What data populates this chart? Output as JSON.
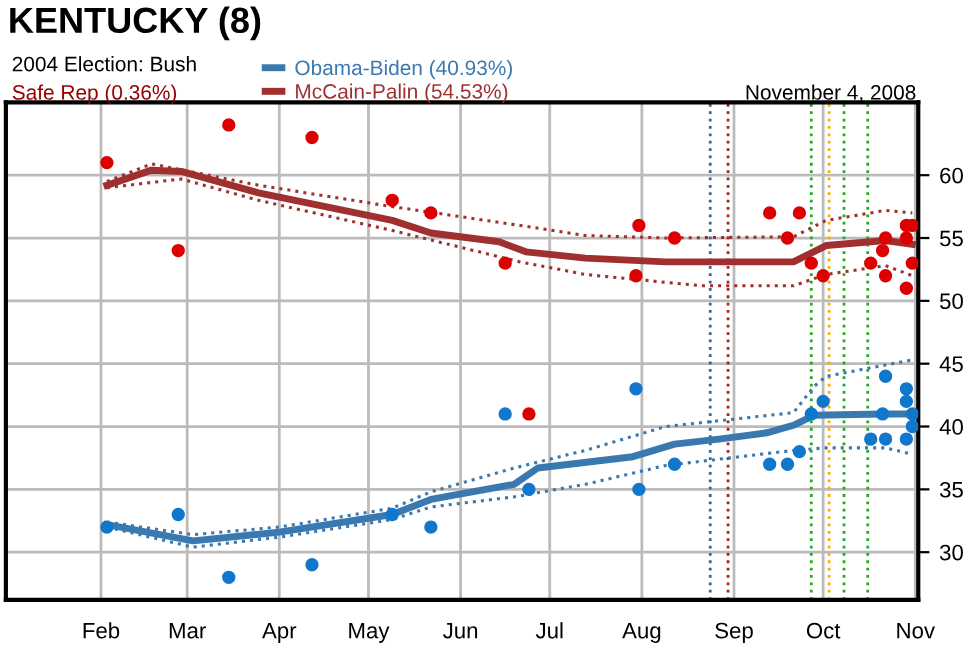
{
  "chart_data": {
    "type": "line",
    "title": "KENTUCKY (8)",
    "subtitle": "2004 Election: Bush",
    "annotations": [
      "Safe Rep (0.36%)",
      "November 4, 2008"
    ],
    "xlim": [
      "2007-12-31",
      "2008-11-02"
    ],
    "xticks": [
      {
        "value": "2008-02-01",
        "label": "Feb"
      },
      {
        "value": "2008-03-01",
        "label": "Mar"
      },
      {
        "value": "2008-04-01",
        "label": "Apr"
      },
      {
        "value": "2008-05-01",
        "label": "May"
      },
      {
        "value": "2008-06-01",
        "label": "Jun"
      },
      {
        "value": "2008-07-01",
        "label": "Jul"
      },
      {
        "value": "2008-08-01",
        "label": "Aug"
      },
      {
        "value": "2008-09-01",
        "label": "Sep"
      },
      {
        "value": "2008-10-01",
        "label": "Oct"
      },
      {
        "value": "2008-11-01",
        "label": "Nov"
      }
    ],
    "ylim": [
      26.2,
      65.8
    ],
    "yticks": [
      30,
      35,
      40,
      45,
      50,
      55,
      60
    ],
    "grid": true,
    "legend": "top",
    "ref_lines": [
      {
        "axis": "x",
        "value": "2008-08-24",
        "color": "#336699",
        "line_style": "dotted"
      },
      {
        "axis": "x",
        "value": "2008-08-30",
        "color": "#aa2222",
        "line_style": "dotted"
      },
      {
        "axis": "x",
        "value": "2008-09-27",
        "color": "#22aa22",
        "line_style": "dotted"
      },
      {
        "axis": "x",
        "value": "2008-10-03",
        "color": "#ffaa00",
        "line_style": "dotted"
      },
      {
        "axis": "x",
        "value": "2008-10-08",
        "color": "#22aa22",
        "line_style": "dotted"
      },
      {
        "axis": "x",
        "value": "2008-10-16",
        "color": "#22aa22",
        "line_style": "dotted"
      }
    ],
    "series": [
      {
        "name": "Obama-Biden (40.93%)",
        "color": "#3a78b0",
        "line_style": "solid",
        "marker": "none",
        "x": [
          "2008-02-03",
          "2008-03-03",
          "2008-04-01",
          "2008-05-09",
          "2008-05-22",
          "2008-06-19",
          "2008-06-27",
          "2008-07-29",
          "2008-08-12",
          "2008-08-27",
          "2008-09-12",
          "2008-09-21",
          "2008-09-28",
          "2008-10-21",
          "2008-10-31"
        ],
        "values": [
          32.2,
          30.9,
          31.6,
          33.0,
          34.2,
          35.4,
          36.7,
          37.6,
          38.6,
          39.0,
          39.5,
          40.1,
          40.9,
          41.0,
          41.0
        ]
      },
      {
        "name": "McCain-Palin (54.53%)",
        "color": "#a03030",
        "line_style": "solid",
        "marker": "none",
        "x": [
          "2008-02-03",
          "2008-02-18",
          "2008-02-28",
          "2008-03-25",
          "2008-05-09",
          "2008-05-22",
          "2008-06-14",
          "2008-06-23",
          "2008-07-13",
          "2008-08-09",
          "2008-09-21",
          "2008-10-02",
          "2008-10-22",
          "2008-10-31"
        ],
        "values": [
          59.2,
          60.4,
          60.3,
          58.6,
          56.4,
          55.4,
          54.7,
          53.9,
          53.4,
          53.1,
          53.1,
          54.4,
          54.8,
          54.5
        ]
      },
      {
        "type": "line",
        "color": "#3a78b0",
        "line_style": "dotted",
        "marker": "none",
        "x": [
          "2008-02-03",
          "2008-03-03",
          "2008-04-01",
          "2008-05-09",
          "2008-05-22",
          "2008-06-19",
          "2008-07-13",
          "2008-08-09",
          "2008-09-21",
          "2008-09-28",
          "2008-10-02",
          "2008-10-31"
        ],
        "values": [
          32.4,
          31.4,
          32.0,
          33.5,
          34.8,
          36.7,
          38.1,
          40.0,
          41.1,
          43.2,
          44.0,
          45.3
        ]
      },
      {
        "type": "line",
        "color": "#3a78b0",
        "line_style": "dotted",
        "marker": "none",
        "x": [
          "2008-02-03",
          "2008-03-03",
          "2008-04-01",
          "2008-05-09",
          "2008-05-22",
          "2008-06-19",
          "2008-07-13",
          "2008-08-09",
          "2008-09-21",
          "2008-10-02",
          "2008-10-22",
          "2008-10-31"
        ],
        "values": [
          32.0,
          30.4,
          31.2,
          32.6,
          33.6,
          34.4,
          35.4,
          36.9,
          38.1,
          38.3,
          38.3,
          37.8
        ]
      },
      {
        "type": "line",
        "color": "#a03030",
        "line_style": "dotted",
        "marker": "none",
        "x": [
          "2008-02-03",
          "2008-02-18",
          "2008-03-25",
          "2008-05-09",
          "2008-06-21",
          "2008-07-13",
          "2008-08-09",
          "2008-09-21",
          "2008-10-02",
          "2008-10-22",
          "2008-10-31"
        ],
        "values": [
          59.5,
          60.9,
          59.2,
          57.5,
          56.0,
          55.2,
          55.0,
          55.1,
          56.4,
          57.2,
          57.0
        ]
      },
      {
        "type": "line",
        "color": "#a03030",
        "line_style": "dotted",
        "marker": "none",
        "x": [
          "2008-02-03",
          "2008-02-28",
          "2008-03-25",
          "2008-05-09",
          "2008-06-21",
          "2008-07-13",
          "2008-08-21",
          "2008-09-21",
          "2008-10-02",
          "2008-10-22",
          "2008-10-31"
        ],
        "values": [
          59.0,
          59.7,
          58.0,
          55.6,
          53.1,
          52.1,
          51.2,
          51.2,
          52.1,
          52.8,
          52.0
        ]
      },
      {
        "type": "scatter",
        "color": "#1177cc",
        "marker": "circle",
        "x": [
          "2008-02-03",
          "2008-02-27",
          "2008-03-15",
          "2008-04-12",
          "2008-05-09",
          "2008-05-22",
          "2008-06-16",
          "2008-06-24",
          "2008-07-30",
          "2008-08-12",
          "2008-09-13",
          "2008-09-23",
          "2008-09-27",
          "2008-10-01",
          "2008-10-21",
          "2008-10-22",
          "2008-10-22",
          "2008-10-29",
          "2008-10-29",
          "2008-10-31"
        ],
        "values": [
          32,
          33,
          28,
          29,
          33,
          32,
          41,
          35,
          43,
          37,
          37,
          38,
          41,
          42,
          41,
          44,
          39,
          43,
          42,
          40
        ]
      },
      {
        "type": "scatter",
        "color": "#1177cc",
        "marker": "circle",
        "x": [
          "2008-07-31",
          "2008-09-19",
          "2008-10-17",
          "2008-10-29",
          "2008-10-31"
        ],
        "values": [
          35,
          37,
          39,
          39,
          41
        ]
      },
      {
        "type": "scatter",
        "color": "#dd0000",
        "marker": "circle",
        "x": [
          "2008-02-03",
          "2008-02-27",
          "2008-03-15",
          "2008-04-12",
          "2008-05-09",
          "2008-05-22",
          "2008-06-16",
          "2008-06-24",
          "2008-07-30",
          "2008-08-12",
          "2008-09-13",
          "2008-09-23",
          "2008-09-27",
          "2008-10-01",
          "2008-10-21",
          "2008-10-22",
          "2008-10-22",
          "2008-10-29",
          "2008-10-29",
          "2008-10-31"
        ],
        "values": [
          61,
          54,
          64,
          63,
          58,
          57,
          53,
          41,
          52,
          55,
          57,
          57,
          53,
          52,
          54,
          55,
          52,
          55,
          51,
          56
        ]
      },
      {
        "type": "scatter",
        "color": "#dd0000",
        "marker": "circle",
        "x": [
          "2008-07-31",
          "2008-09-19",
          "2008-10-17",
          "2008-10-29",
          "2008-10-31"
        ],
        "values": [
          56,
          55,
          53,
          56,
          53
        ]
      }
    ]
  }
}
